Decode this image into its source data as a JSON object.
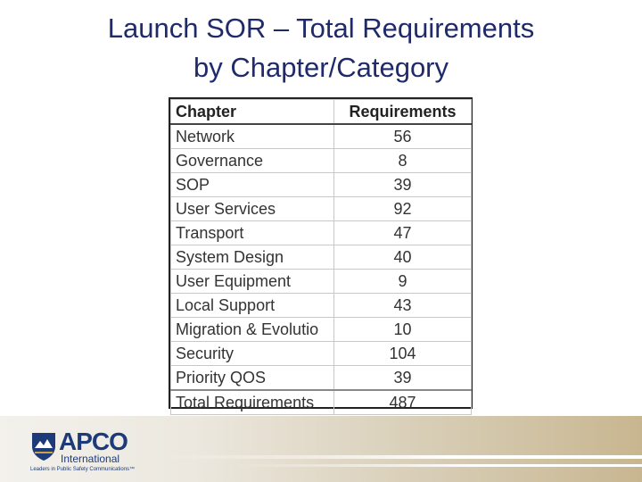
{
  "slide": {
    "title_line1": "Launch SOR – Total Requirements",
    "title_line2": "by Chapter/Category"
  },
  "table": {
    "headers": [
      "Chapter",
      "Requirements"
    ],
    "rows": [
      {
        "chapter": "Network",
        "requirements": "56"
      },
      {
        "chapter": "Governance",
        "requirements": "8"
      },
      {
        "chapter": "SOP",
        "requirements": "39"
      },
      {
        "chapter": "User Services",
        "requirements": "92"
      },
      {
        "chapter": "Transport",
        "requirements": "47"
      },
      {
        "chapter": "System Design",
        "requirements": "40"
      },
      {
        "chapter": "User Equipment",
        "requirements": "9"
      },
      {
        "chapter": "Local Support",
        "requirements": "43"
      },
      {
        "chapter": "Migration & Evolutio",
        "requirements": "10"
      },
      {
        "chapter": "Security",
        "requirements": "104"
      },
      {
        "chapter": "Priority QOS",
        "requirements": "39"
      },
      {
        "chapter": "Total Requirements",
        "requirements": "487"
      }
    ]
  },
  "logo": {
    "name": "APCO",
    "sub": "International",
    "tagline": "Leaders in Public Safety Communications™"
  }
}
